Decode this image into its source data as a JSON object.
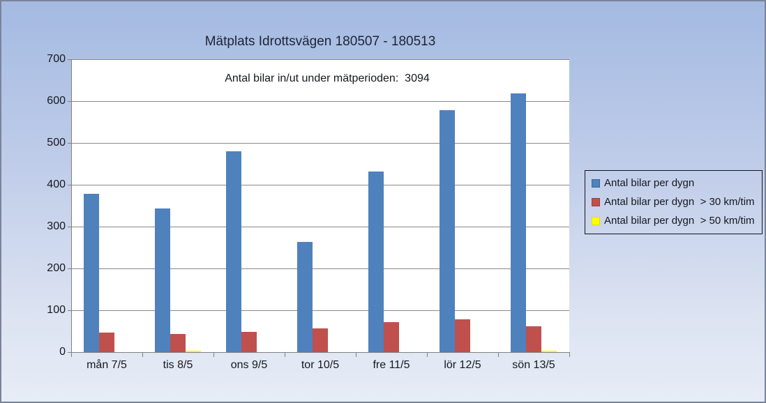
{
  "chart_data": {
    "type": "bar",
    "title": "Mätplats Idrottsvägen 180507 - 180513",
    "annotation": "Antal bilar in/ut under mätperioden:  3094",
    "categories": [
      "mån 7/5",
      "tis 8/5",
      "ons 9/5",
      "tor 10/5",
      "fre 11/5",
      "lör 12/5",
      "sön 13/5"
    ],
    "series": [
      {
        "name": "Antal bilar per dygn",
        "color": "#4F81BD",
        "border": "#3b6694",
        "values": [
          378,
          344,
          480,
          263,
          432,
          578,
          619
        ]
      },
      {
        "name": "Antal bilar per dygn  > 30 km/tim",
        "color": "#C0504D",
        "border": "#973f3d",
        "values": [
          46,
          43,
          48,
          56,
          71,
          79,
          62
        ]
      },
      {
        "name": "Antal bilar per dygn  > 50 km/tim",
        "color": "#FFFF00",
        "border": "#e0e000",
        "values": [
          0,
          3,
          0,
          0,
          0,
          0,
          3
        ]
      }
    ],
    "xlabel": "",
    "ylabel": "",
    "ylim": [
      0,
      700
    ],
    "yticks": [
      0,
      100,
      200,
      300,
      400,
      500,
      600,
      700
    ],
    "grid": true,
    "legend_position": "right",
    "plot_background": "#ffffff",
    "gridline_color": "#898989"
  }
}
